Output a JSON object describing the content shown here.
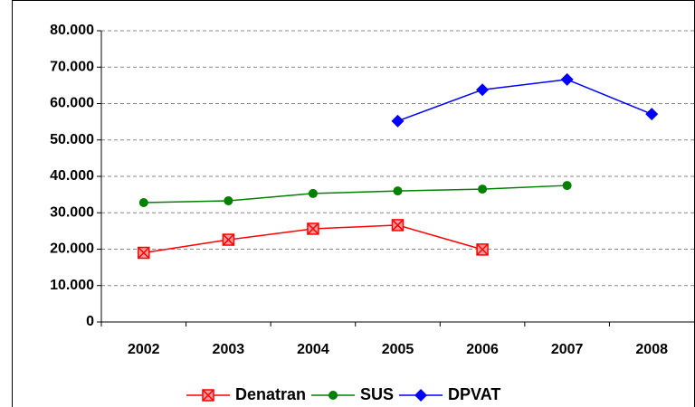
{
  "chart_data": {
    "type": "line",
    "categories": [
      "2002",
      "2003",
      "2004",
      "2005",
      "2006",
      "2007",
      "2008"
    ],
    "series": [
      {
        "name": "Denatran",
        "color": "#ff0000",
        "marker": "square-x",
        "values": [
          19000,
          22600,
          25600,
          26600,
          19900,
          null,
          null
        ]
      },
      {
        "name": "SUS",
        "color": "#008000",
        "marker": "circle",
        "values": [
          32800,
          33300,
          35300,
          36000,
          36500,
          37500,
          null
        ]
      },
      {
        "name": "DPVAT",
        "color": "#0000ff",
        "marker": "diamond",
        "values": [
          null,
          null,
          null,
          55200,
          63800,
          66600,
          57100
        ]
      }
    ],
    "ylim": [
      0,
      80000
    ],
    "yticks": [
      {
        "value": 0,
        "label": "0"
      },
      {
        "value": 10000,
        "label": "10.000"
      },
      {
        "value": 20000,
        "label": "20.000"
      },
      {
        "value": 30000,
        "label": "30.000"
      },
      {
        "value": 40000,
        "label": "40.000"
      },
      {
        "value": 50000,
        "label": "50.000"
      },
      {
        "value": 60000,
        "label": "60.000"
      },
      {
        "value": 70000,
        "label": "70.000"
      },
      {
        "value": 80000,
        "label": "80.000"
      }
    ],
    "grid": true,
    "legend": "bottom"
  }
}
